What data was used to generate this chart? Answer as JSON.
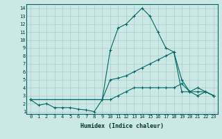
{
  "xlabel": "Humidex (Indice chaleur)",
  "bg_color": "#cce8e4",
  "grid_color": "#aacccc",
  "line_color": "#006666",
  "xlim": [
    -0.5,
    23.5
  ],
  "ylim": [
    0.7,
    14.5
  ],
  "xticks": [
    0,
    1,
    2,
    3,
    4,
    5,
    6,
    7,
    8,
    9,
    10,
    11,
    12,
    13,
    14,
    15,
    16,
    17,
    18,
    19,
    20,
    21,
    22,
    23
  ],
  "yticks": [
    1,
    2,
    3,
    4,
    5,
    6,
    7,
    8,
    9,
    10,
    11,
    12,
    13,
    14
  ],
  "line1_x": [
    0,
    1,
    2,
    3,
    4,
    5,
    6,
    7,
    8,
    9,
    10,
    11,
    12,
    13,
    14,
    15,
    16,
    17,
    18,
    19,
    20,
    21,
    22,
    23
  ],
  "line1_y": [
    2.5,
    1.8,
    2.0,
    1.5,
    1.5,
    1.5,
    1.3,
    1.2,
    1.0,
    2.5,
    8.7,
    11.5,
    12.0,
    13.0,
    14.0,
    13.0,
    11.0,
    9.0,
    8.5,
    3.5,
    3.5,
    4.0,
    3.5,
    3.0
  ],
  "line2_x": [
    0,
    9,
    10,
    11,
    12,
    13,
    14,
    15,
    16,
    17,
    18,
    19,
    20,
    21,
    22,
    23
  ],
  "line2_y": [
    2.5,
    2.5,
    5.0,
    5.2,
    5.5,
    6.0,
    6.5,
    7.0,
    7.5,
    8.0,
    8.5,
    5.0,
    3.5,
    3.5,
    3.5,
    3.0
  ],
  "line3_x": [
    0,
    9,
    10,
    11,
    12,
    13,
    14,
    15,
    16,
    17,
    18,
    19,
    20,
    21,
    22,
    23
  ],
  "line3_y": [
    2.5,
    2.5,
    2.5,
    3.0,
    3.5,
    4.0,
    4.0,
    4.0,
    4.0,
    4.0,
    4.0,
    4.5,
    3.5,
    3.0,
    3.5,
    3.0
  ],
  "xlabel_fontsize": 6,
  "tick_fontsize": 5,
  "line_width": 0.8,
  "marker_size": 2.5
}
